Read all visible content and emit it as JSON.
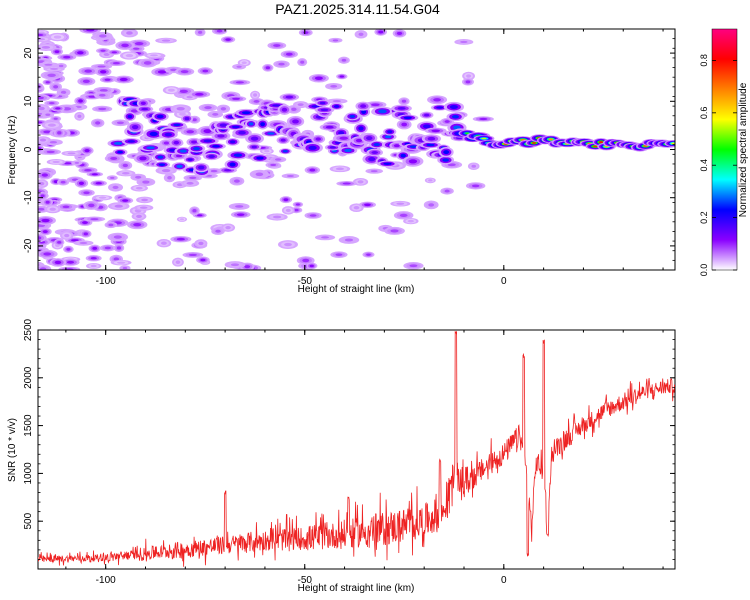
{
  "title": "PAZ1.2025.314.11.54.G04",
  "chart_data": [
    {
      "type": "heatmap",
      "title": "PAZ1.2025.314.11.54.G04",
      "xlabel": "Height of straight line (km)",
      "ylabel": "Frequency (Hz)",
      "xlim": [
        -117,
        43
      ],
      "ylim": [
        -25,
        25
      ],
      "xticks": [
        -100,
        -50,
        0
      ],
      "xtick_labels": [
        "-100",
        "-50",
        "0"
      ],
      "yticks": [
        -20,
        -10,
        0,
        10,
        20
      ],
      "ytick_labels": [
        "-20",
        "-10",
        "0",
        "10",
        "20"
      ],
      "colorbar": {
        "label": "Normalized spectral amplitude",
        "range": [
          0,
          0.92
        ],
        "ticks": [
          0,
          0.2,
          0.4,
          0.6,
          0.8
        ],
        "tick_labels": [
          "0.0",
          "0.2",
          "0.4",
          "0.6",
          "0.8"
        ],
        "colormap": [
          "#ffffff",
          "#8a00ff",
          "#0000ff",
          "#00ffff",
          "#00ff00",
          "#ffff00",
          "#ff8000",
          "#ff0000",
          "#ff0080"
        ]
      },
      "signal_track": {
        "x": [
          -95,
          -85,
          -75,
          -65,
          -55,
          -45,
          -35,
          -25,
          -15,
          -10,
          -5,
          0,
          10,
          20,
          30,
          43
        ],
        "frequency": [
          5,
          2,
          0,
          2,
          5,
          4,
          3,
          3,
          3,
          3,
          2,
          1,
          2,
          1,
          1,
          1
        ],
        "peak_amplitude": [
          0.25,
          0.2,
          0.25,
          0.2,
          0.22,
          0.2,
          0.2,
          0.18,
          0.15,
          0.5,
          0.6,
          0.85,
          0.8,
          0.85,
          0.8,
          0.75
        ]
      },
      "grid": false
    },
    {
      "type": "line",
      "xlabel": "Height of straight line (km)",
      "ylabel": "SNR (10 * v/v)",
      "xlim": [
        -117,
        43
      ],
      "ylim": [
        0,
        2500
      ],
      "xticks": [
        -100,
        -50,
        0
      ],
      "xtick_labels": [
        "-100",
        "-50",
        "0"
      ],
      "yticks": [
        500,
        1000,
        1500,
        2000,
        2500
      ],
      "ytick_labels": [
        "500",
        "1000",
        "1500",
        "2000",
        "2500"
      ],
      "color": "#ee2222",
      "trend": {
        "x": [
          -117,
          -100,
          -85,
          -70,
          -60,
          -50,
          -40,
          -30,
          -20,
          -15,
          -13,
          -12,
          -11,
          -8,
          -5,
          -2,
          0,
          2,
          4,
          5,
          6,
          7,
          8,
          9,
          10,
          11,
          12,
          15,
          20,
          25,
          30,
          35,
          40,
          43
        ],
        "y": [
          100,
          120,
          180,
          250,
          300,
          320,
          360,
          420,
          500,
          600,
          950,
          1000,
          900,
          950,
          1050,
          1150,
          1200,
          1300,
          1400,
          1200,
          900,
          400,
          1100,
          1100,
          900,
          600,
          1200,
          1350,
          1500,
          1650,
          1750,
          1850,
          1900,
          1920
        ]
      },
      "spikes": [
        {
          "x": -70,
          "y": 820
        },
        {
          "x": -39,
          "y": 760
        },
        {
          "x": -16,
          "y": 1150
        },
        {
          "x": -12,
          "y": 2500
        },
        {
          "x": 5,
          "y": 2250
        },
        {
          "x": 6,
          "y": 170
        },
        {
          "x": 10,
          "y": 2400
        },
        {
          "x": 11,
          "y": 380
        }
      ],
      "noise_amplitude": [
        60,
        60,
        80,
        120,
        150,
        160,
        180,
        200,
        230,
        260,
        300,
        300,
        250,
        200,
        200,
        180,
        150,
        150,
        130
      ],
      "grid": false
    }
  ]
}
